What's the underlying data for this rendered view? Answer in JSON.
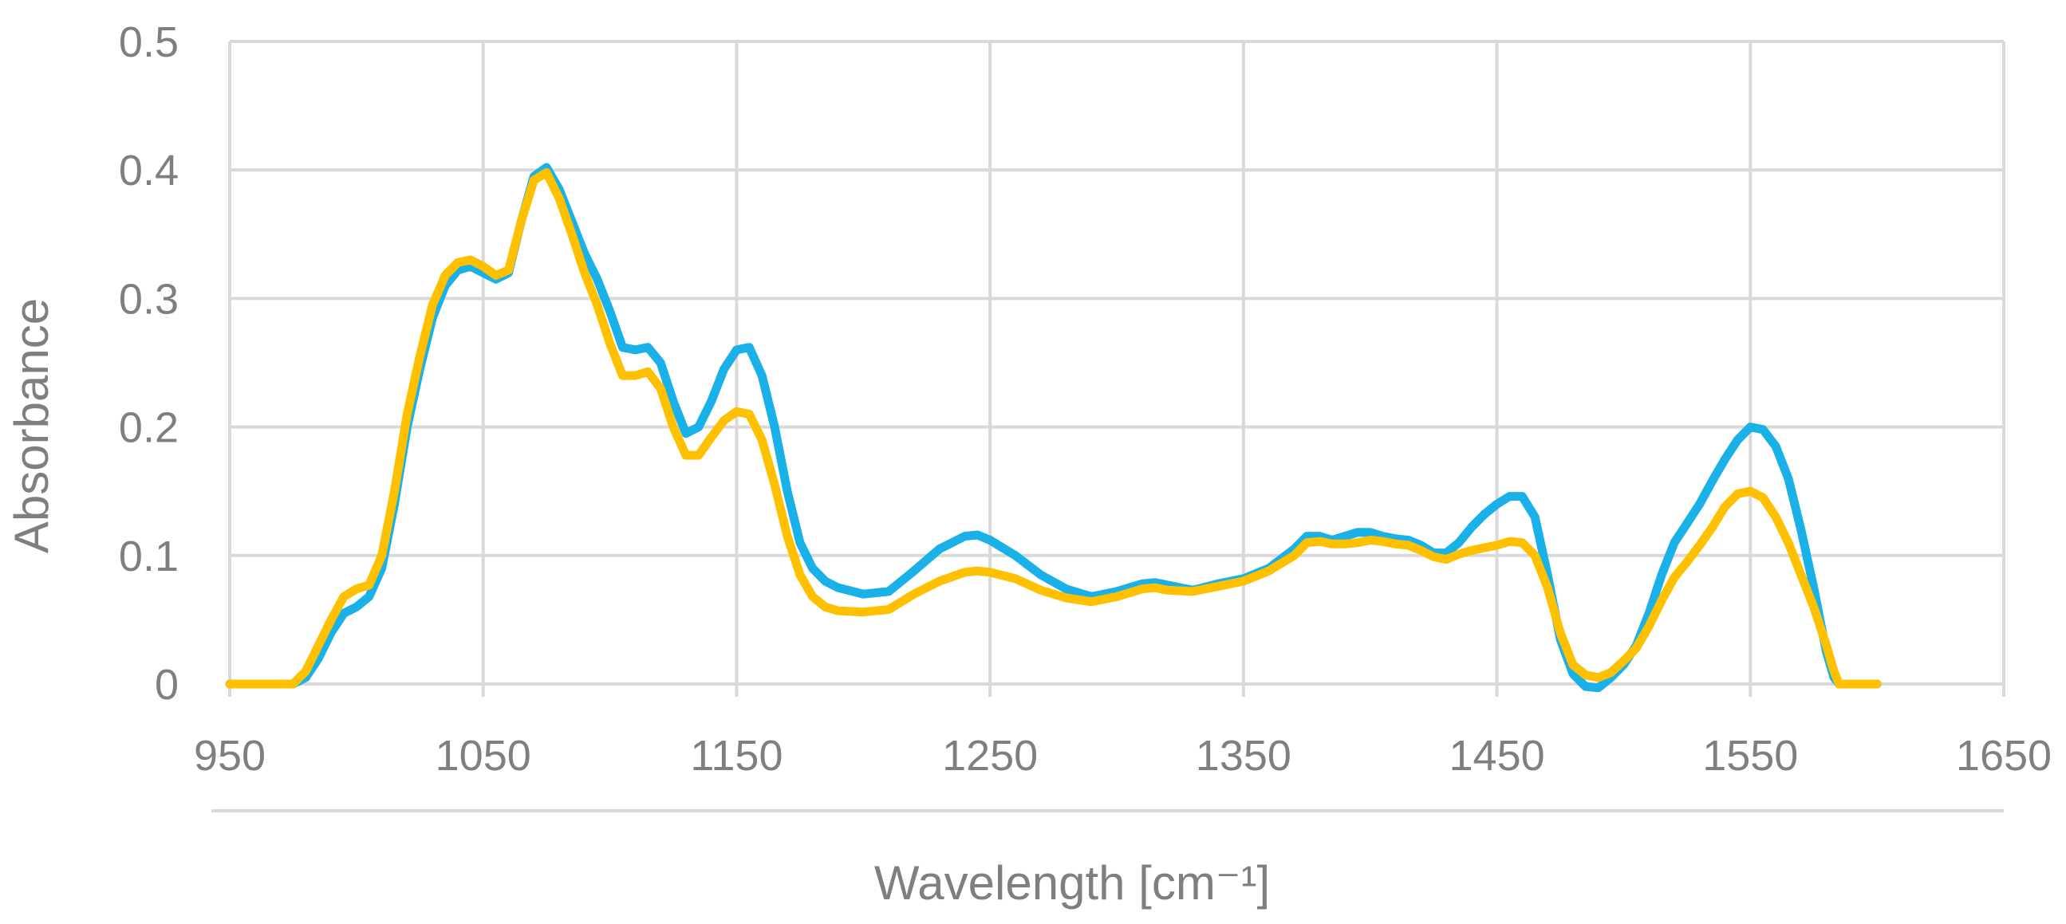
{
  "chart_data": {
    "type": "line",
    "title": "",
    "xlabel": "Wavelength [cm⁻¹]",
    "ylabel": "Absorbance",
    "xlim": [
      950,
      1650
    ],
    "ylim": [
      0,
      0.5
    ],
    "x_ticks": [
      950,
      1050,
      1150,
      1250,
      1350,
      1450,
      1550,
      1650
    ],
    "y_ticks": [
      0,
      0.1,
      0.2,
      0.3,
      0.4,
      0.5
    ],
    "x_tick_labels": [
      "950",
      "1050",
      "1150",
      "1250",
      "1350",
      "1450",
      "1550",
      "1650"
    ],
    "y_tick_labels": [
      "0",
      "0.1",
      "0.2",
      "0.3",
      "0.4",
      "0.5"
    ],
    "grid": true,
    "legend": "none",
    "colors": {
      "series_1": "#1ab0e8",
      "series_2": "#ffc000",
      "grid": "#d9d9d9",
      "text": "#7f7f7f"
    },
    "series": [
      {
        "color": "#1ab0e8",
        "x": [
          950,
          975,
          980,
          985,
          990,
          995,
          1000,
          1005,
          1010,
          1015,
          1020,
          1025,
          1030,
          1035,
          1040,
          1045,
          1050,
          1055,
          1060,
          1065,
          1070,
          1075,
          1080,
          1085,
          1090,
          1095,
          1100,
          1105,
          1110,
          1115,
          1120,
          1125,
          1130,
          1135,
          1140,
          1145,
          1150,
          1155,
          1160,
          1165,
          1170,
          1175,
          1180,
          1185,
          1190,
          1200,
          1210,
          1220,
          1230,
          1240,
          1245,
          1250,
          1260,
          1270,
          1280,
          1290,
          1300,
          1310,
          1315,
          1320,
          1330,
          1340,
          1350,
          1360,
          1370,
          1375,
          1380,
          1385,
          1390,
          1395,
          1400,
          1405,
          1410,
          1415,
          1420,
          1425,
          1430,
          1435,
          1440,
          1445,
          1450,
          1455,
          1460,
          1465,
          1470,
          1475,
          1480,
          1485,
          1490,
          1495,
          1500,
          1505,
          1510,
          1515,
          1520,
          1525,
          1530,
          1535,
          1540,
          1545,
          1550,
          1555,
          1560,
          1565,
          1570,
          1575,
          1580,
          1583,
          1585,
          1590,
          1600
        ],
        "y": [
          0,
          0,
          0.005,
          0.02,
          0.04,
          0.055,
          0.06,
          0.068,
          0.09,
          0.14,
          0.2,
          0.245,
          0.285,
          0.31,
          0.322,
          0.325,
          0.32,
          0.315,
          0.32,
          0.36,
          0.395,
          0.402,
          0.385,
          0.36,
          0.335,
          0.315,
          0.29,
          0.262,
          0.26,
          0.262,
          0.25,
          0.22,
          0.195,
          0.2,
          0.22,
          0.245,
          0.26,
          0.262,
          0.24,
          0.2,
          0.15,
          0.11,
          0.09,
          0.08,
          0.075,
          0.07,
          0.072,
          0.088,
          0.105,
          0.115,
          0.116,
          0.112,
          0.1,
          0.085,
          0.074,
          0.068,
          0.072,
          0.078,
          0.079,
          0.077,
          0.073,
          0.078,
          0.082,
          0.09,
          0.105,
          0.115,
          0.115,
          0.112,
          0.115,
          0.118,
          0.118,
          0.115,
          0.113,
          0.112,
          0.108,
          0.102,
          0.102,
          0.11,
          0.122,
          0.132,
          0.14,
          0.146,
          0.146,
          0.13,
          0.085,
          0.035,
          0.008,
          -0.002,
          -0.003,
          0.005,
          0.015,
          0.03,
          0.055,
          0.085,
          0.11,
          0.125,
          0.14,
          0.158,
          0.175,
          0.19,
          0.2,
          0.198,
          0.185,
          0.16,
          0.12,
          0.075,
          0.025,
          0.005,
          0,
          0,
          0
        ]
      },
      {
        "color": "#ffc000",
        "x": [
          950,
          975,
          980,
          985,
          990,
          995,
          1000,
          1005,
          1010,
          1015,
          1020,
          1025,
          1030,
          1035,
          1040,
          1045,
          1050,
          1055,
          1060,
          1065,
          1070,
          1075,
          1080,
          1085,
          1090,
          1095,
          1100,
          1105,
          1110,
          1115,
          1120,
          1125,
          1130,
          1135,
          1140,
          1145,
          1150,
          1155,
          1160,
          1165,
          1170,
          1175,
          1180,
          1185,
          1190,
          1200,
          1210,
          1220,
          1230,
          1240,
          1245,
          1250,
          1260,
          1270,
          1280,
          1290,
          1300,
          1310,
          1315,
          1320,
          1330,
          1340,
          1350,
          1360,
          1370,
          1375,
          1380,
          1385,
          1390,
          1395,
          1400,
          1405,
          1410,
          1415,
          1420,
          1425,
          1430,
          1435,
          1440,
          1445,
          1450,
          1455,
          1460,
          1465,
          1470,
          1475,
          1480,
          1485,
          1490,
          1495,
          1500,
          1505,
          1510,
          1515,
          1520,
          1525,
          1530,
          1535,
          1540,
          1545,
          1550,
          1555,
          1560,
          1565,
          1570,
          1575,
          1580,
          1583,
          1585,
          1590,
          1600
        ],
        "y": [
          0,
          0,
          0.01,
          0.03,
          0.05,
          0.068,
          0.074,
          0.077,
          0.1,
          0.15,
          0.21,
          0.255,
          0.295,
          0.318,
          0.328,
          0.33,
          0.325,
          0.318,
          0.322,
          0.36,
          0.392,
          0.398,
          0.378,
          0.35,
          0.32,
          0.295,
          0.265,
          0.24,
          0.24,
          0.243,
          0.23,
          0.2,
          0.178,
          0.178,
          0.192,
          0.205,
          0.212,
          0.21,
          0.19,
          0.155,
          0.115,
          0.085,
          0.068,
          0.06,
          0.057,
          0.056,
          0.058,
          0.07,
          0.08,
          0.087,
          0.088,
          0.087,
          0.082,
          0.073,
          0.067,
          0.064,
          0.068,
          0.074,
          0.075,
          0.073,
          0.072,
          0.076,
          0.08,
          0.088,
          0.1,
          0.11,
          0.111,
          0.109,
          0.109,
          0.11,
          0.112,
          0.111,
          0.109,
          0.108,
          0.104,
          0.099,
          0.097,
          0.101,
          0.104,
          0.106,
          0.108,
          0.111,
          0.11,
          0.1,
          0.075,
          0.04,
          0.015,
          0.007,
          0.005,
          0.009,
          0.018,
          0.028,
          0.045,
          0.065,
          0.083,
          0.095,
          0.108,
          0.122,
          0.138,
          0.148,
          0.15,
          0.145,
          0.13,
          0.11,
          0.085,
          0.06,
          0.03,
          0.01,
          0,
          0,
          0
        ]
      }
    ]
  }
}
